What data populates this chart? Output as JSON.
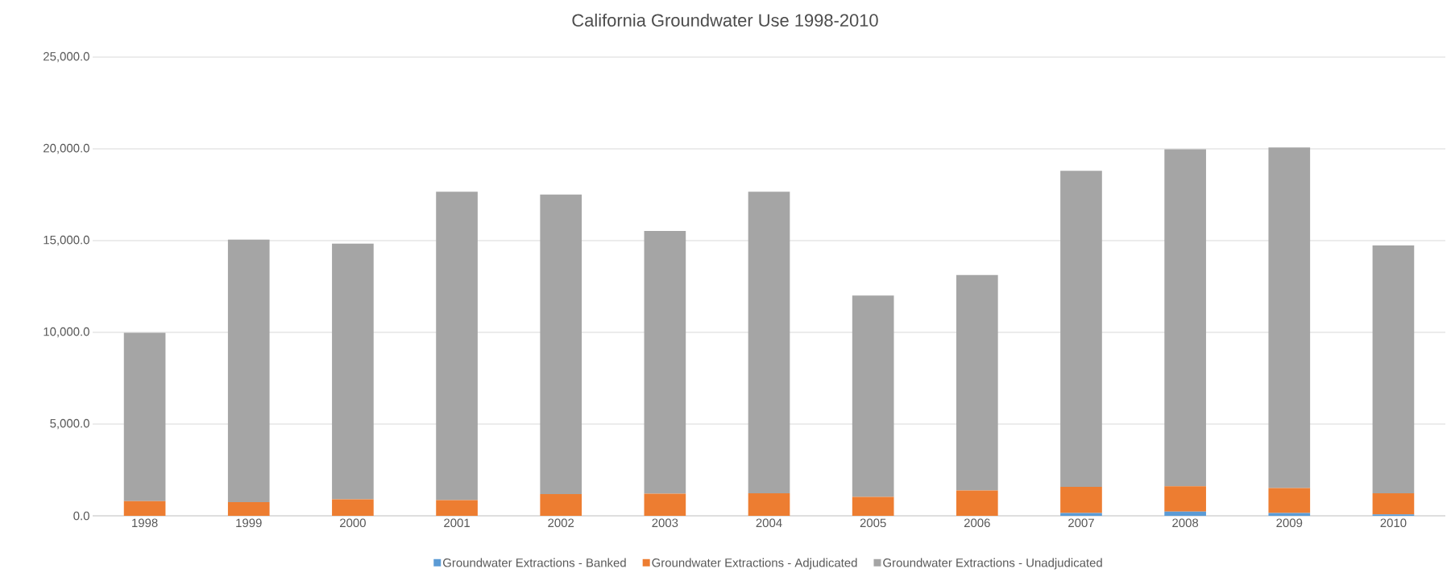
{
  "chart_data": {
    "type": "bar",
    "title": "California Groundwater Use 1998-2010",
    "stacked": true,
    "grid": "y",
    "legend": "bottom",
    "categories": [
      "1998",
      "1999",
      "2000",
      "2001",
      "2002",
      "2003",
      "2004",
      "2005",
      "2006",
      "2007",
      "2008",
      "2009",
      "2010"
    ],
    "series": [
      {
        "name": "Groundwater Extractions - Banked",
        "color": "#5b9bd5",
        "values": [
          0,
          0,
          0,
          0,
          0,
          0,
          0,
          0,
          0,
          150,
          230,
          150,
          80
        ]
      },
      {
        "name": "Groundwater Extractions - Adjudicated",
        "color": "#ed7d31",
        "values": [
          800,
          750,
          900,
          850,
          1180,
          1200,
          1230,
          1030,
          1380,
          1430,
          1380,
          1360,
          1150
        ]
      },
      {
        "name": "Groundwater Extractions - Unadjudicated",
        "color": "#a5a5a5",
        "values": [
          9180,
          14300,
          13930,
          16810,
          16330,
          14330,
          16430,
          10980,
          11740,
          17220,
          18370,
          18570,
          13510
        ]
      }
    ],
    "ylim": [
      0,
      25000
    ],
    "yticks": [
      {
        "value": 0,
        "label": "0.0"
      },
      {
        "value": 5000,
        "label": "5,000.0"
      },
      {
        "value": 10000,
        "label": "10,000.0"
      },
      {
        "value": 15000,
        "label": "15,000.0"
      },
      {
        "value": 20000,
        "label": "20,000.0"
      },
      {
        "value": 25000,
        "label": "25,000.0"
      }
    ]
  }
}
